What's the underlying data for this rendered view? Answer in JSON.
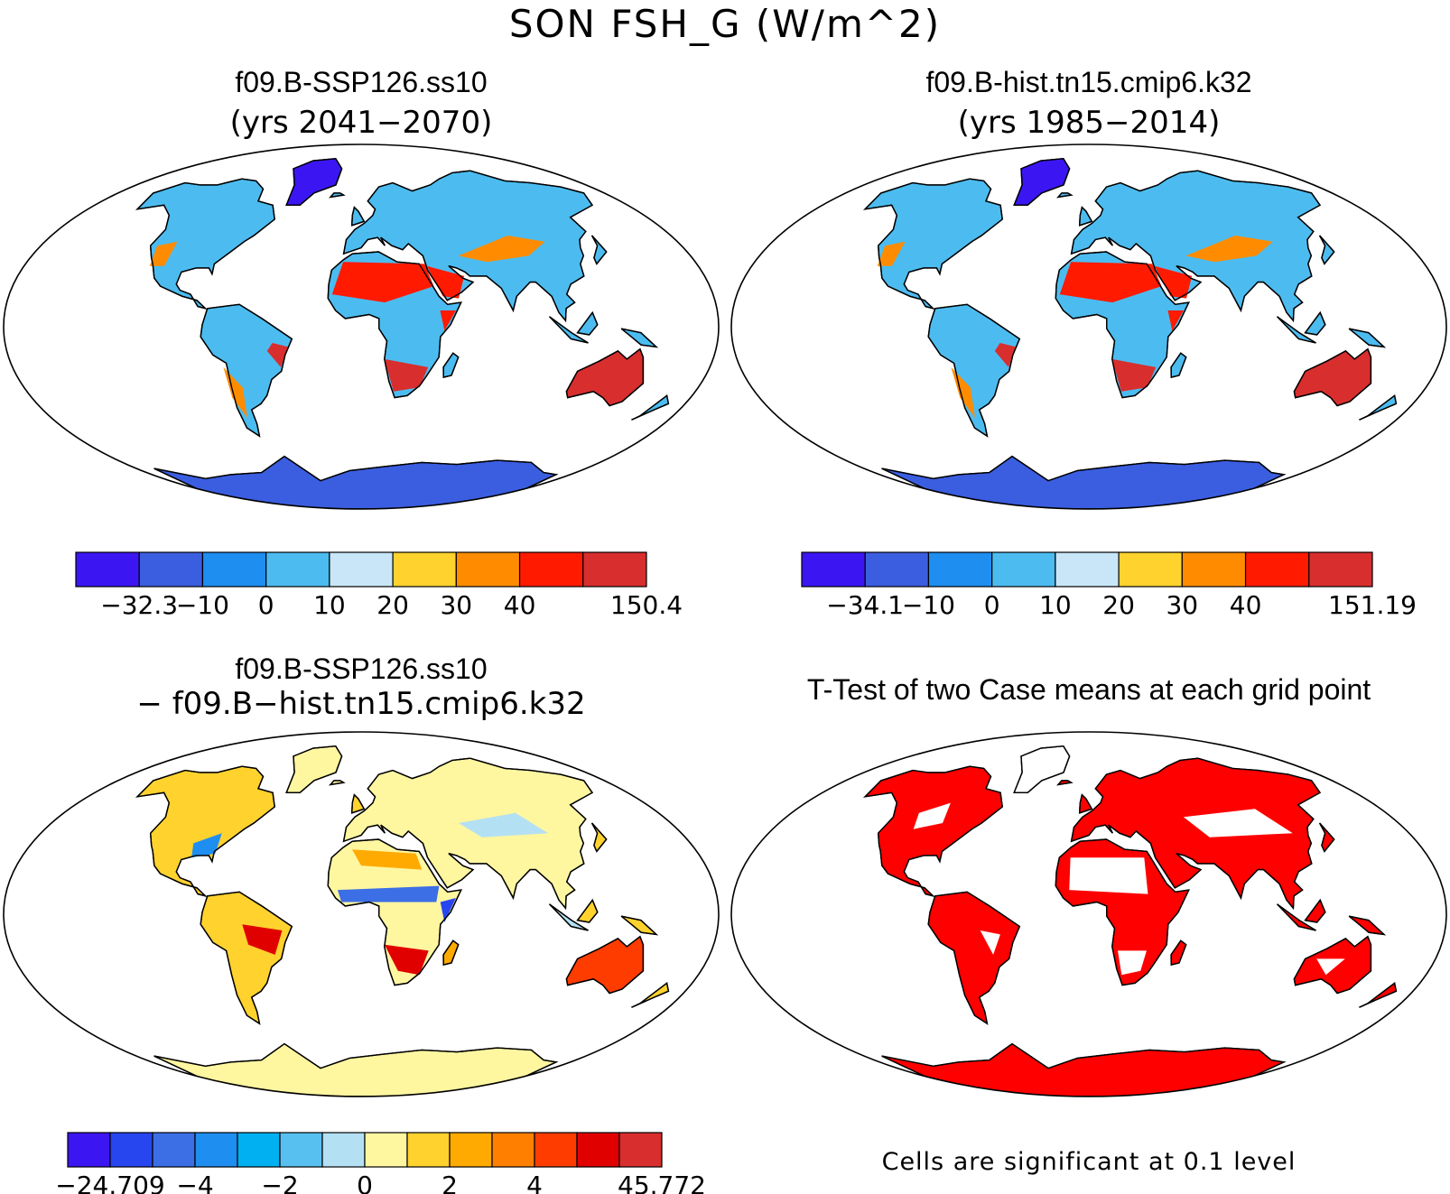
{
  "title": "SON FSH_G (W/m^2)",
  "panels": [
    {
      "id": "p1",
      "title": "f09.B-SSP126.ss10",
      "subtitle": "(yrs 2041−2070)",
      "palette": "abs"
    },
    {
      "id": "p2",
      "title": "f09.B-hist.tn15.cmip6.k32",
      "subtitle": "(yrs 1985−2014)",
      "palette": "abs"
    },
    {
      "id": "p3",
      "title": "f09.B-SSP126.ss10",
      "subtitle": "− f09.B−hist.tn15.cmip6.k32",
      "palette": "diff"
    },
    {
      "id": "p4",
      "title": "T-Test of two Case means at each grid point",
      "subtitle": "",
      "palette": "sig"
    }
  ],
  "colorbars": [
    {
      "id": "cb1",
      "colors": [
        "#3c16f2",
        "#3b5ee0",
        "#1e8ef0",
        "#4cbcf0",
        "#c8e6f8",
        "#ffd22e",
        "#ff8c00",
        "#ff1a00",
        "#d82e2e"
      ],
      "labels": [
        {
          "text": "−32.3",
          "at": 1
        },
        {
          "text": "−10",
          "at": 2
        },
        {
          "text": "0",
          "at": 3
        },
        {
          "text": "10",
          "at": 4
        },
        {
          "text": "20",
          "at": 5
        },
        {
          "text": "30",
          "at": 6
        },
        {
          "text": "40",
          "at": 7
        },
        {
          "text": "150.4",
          "at": 9
        }
      ]
    },
    {
      "id": "cb2",
      "colors": [
        "#3c16f2",
        "#3b5ee0",
        "#1e8ef0",
        "#4cbcf0",
        "#c8e6f8",
        "#ffd22e",
        "#ff8c00",
        "#ff1a00",
        "#d82e2e"
      ],
      "labels": [
        {
          "text": "−34.1",
          "at": 1
        },
        {
          "text": "−10",
          "at": 2
        },
        {
          "text": "0",
          "at": 3
        },
        {
          "text": "10",
          "at": 4
        },
        {
          "text": "20",
          "at": 5
        },
        {
          "text": "30",
          "at": 6
        },
        {
          "text": "40",
          "at": 7
        },
        {
          "text": "151.19",
          "at": 9
        }
      ]
    },
    {
      "id": "cb3",
      "colors": [
        "#3c16f2",
        "#2846f0",
        "#3c6ee6",
        "#1e8ef0",
        "#00b0f0",
        "#58c0f0",
        "#b4e0f4",
        "#fff6a0",
        "#ffd22e",
        "#ffaa00",
        "#ff8000",
        "#ff3c00",
        "#e00000",
        "#d82e2e"
      ],
      "labels": [
        {
          "text": "−24.709",
          "at": 1
        },
        {
          "text": "−4",
          "at": 3
        },
        {
          "text": "−2",
          "at": 5
        },
        {
          "text": "0",
          "at": 7
        },
        {
          "text": "2",
          "at": 9
        },
        {
          "text": "4",
          "at": 11
        },
        {
          "text": "45.772",
          "at": 14
        }
      ]
    }
  ],
  "note": "Cells are significant at 0.1 level"
}
